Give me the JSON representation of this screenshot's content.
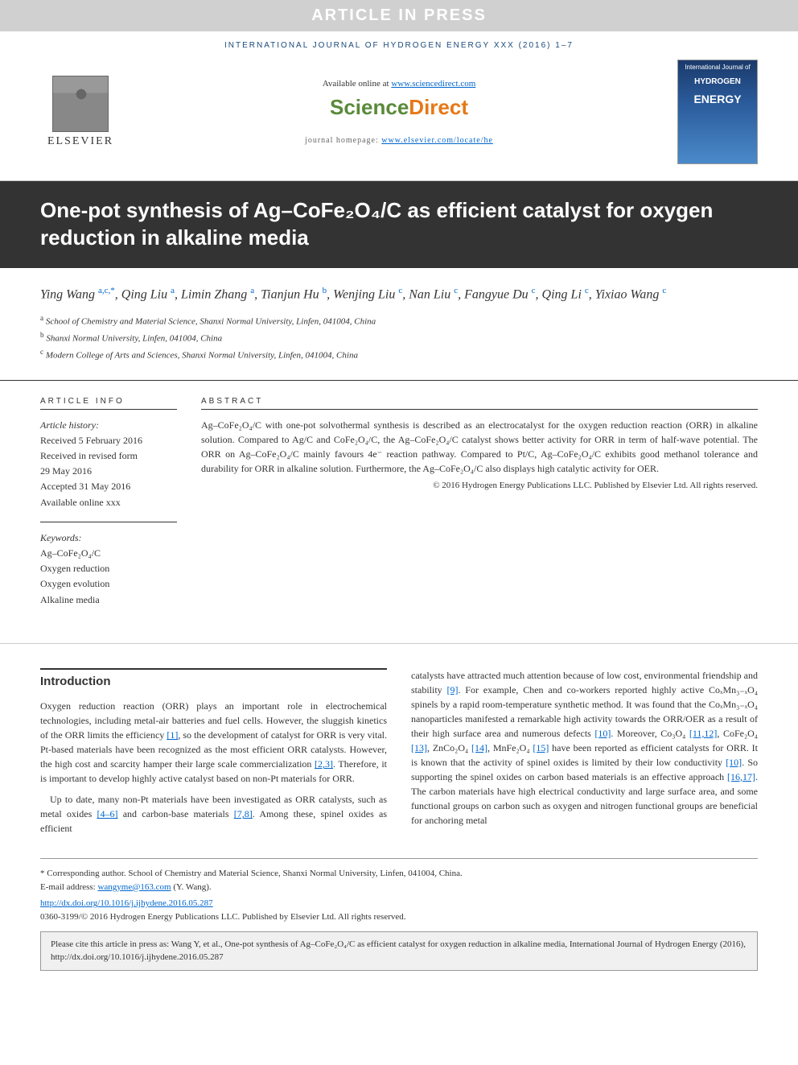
{
  "banner": "ARTICLE IN PRESS",
  "journal_header": "INTERNATIONAL JOURNAL OF HYDROGEN ENERGY XXX (2016) 1–7",
  "elsevier": "ELSEVIER",
  "available_prefix": "Available online at ",
  "available_link": "www.sciencedirect.com",
  "sd_sci": "Science",
  "sd_dir": "Direct",
  "homepage_prefix": "journal homepage: ",
  "homepage_link": "www.elsevier.com/locate/he",
  "cover": {
    "line1": "International Journal of",
    "line2": "HYDROGEN",
    "line3": "ENERGY"
  },
  "title": "One-pot synthesis of Ag–CoFe₂O₄/C as efficient catalyst for oxygen reduction in alkaline media",
  "authors_html": "Ying Wang <sup>a,c,*</sup>, Qing Liu <sup>a</sup>, Limin Zhang <sup>a</sup>, Tianjun Hu <sup>b</sup>, Wenjing Liu <sup>c</sup>, Nan Liu <sup>c</sup>, Fangyue Du <sup>c</sup>, Qing Li <sup>c</sup>, Yixiao Wang <sup>c</sup>",
  "affiliations": [
    {
      "sup": "a",
      "text": "School of Chemistry and Material Science, Shanxi Normal University, Linfen, 041004, China"
    },
    {
      "sup": "b",
      "text": "Shanxi Normal University, Linfen, 041004, China"
    },
    {
      "sup": "c",
      "text": "Modern College of Arts and Sciences, Shanxi Normal University, Linfen, 041004, China"
    }
  ],
  "info_heading": "ARTICLE INFO",
  "history_title": "Article history:",
  "history": [
    "Received 5 February 2016",
    "Received in revised form",
    "29 May 2016",
    "Accepted 31 May 2016",
    "Available online xxx"
  ],
  "keywords_title": "Keywords:",
  "keywords": [
    "Ag–CoFe₂O₄/C",
    "Oxygen reduction",
    "Oxygen evolution",
    "Alkaline media"
  ],
  "abstract_heading": "ABSTRACT",
  "abstract_text": "Ag–CoFe₂O₄/C with one-pot solvothermal synthesis is described as an electrocatalyst for the oxygen reduction reaction (ORR) in alkaline solution. Compared to Ag/C and CoFe₂O₄/C, the Ag–CoFe₂O₄/C catalyst shows better activity for ORR in term of half-wave potential. The ORR on Ag–CoFe₂O₄/C mainly favours 4e⁻ reaction pathway. Compared to Pt/C, Ag–CoFe₂O₄/C exhibits good methanol tolerance and durability for ORR in alkaline solution. Furthermore, the Ag–CoFe₂O₄/C also displays high catalytic activity for OER.",
  "abstract_copyright": "© 2016 Hydrogen Energy Publications LLC. Published by Elsevier Ltd. All rights reserved.",
  "intro_heading": "Introduction",
  "col1_p1": "Oxygen reduction reaction (ORR) plays an important role in electrochemical technologies, including metal-air batteries and fuel cells. However, the sluggish kinetics of the ORR limits the efficiency [1], so the development of catalyst for ORR is very vital. Pt-based materials have been recognized as the most efficient ORR catalysts. However, the high cost and scarcity hamper their large scale commercialization [2,3]. Therefore, it is important to develop highly active catalyst based on non-Pt materials for ORR.",
  "col1_p2": "Up to date, many non-Pt materials have been investigated as ORR catalysts, such as metal oxides [4–6] and carbon-base materials [7,8]. Among these, spinel oxides as efficient",
  "col2_p1": "catalysts have attracted much attention because of low cost, environmental friendship and stability [9]. For example, Chen and co-workers reported highly active CoₓMn₃₋ₓO₄ spinels by a rapid room-temperature synthetic method. It was found that the CoₓMn₃₋ₓO₄ nanoparticles manifested a remarkable high activity towards the ORR/OER as a result of their high surface area and numerous defects [10]. Moreover, Co₃O₄ [11,12], CoFe₂O₄ [13], ZnCo₂O₄ [14], MnFe₂O₄ [15] have been reported as efficient catalysts for ORR. It is known that the activity of spinel oxides is limited by their low conductivity [10]. So supporting the spinel oxides on carbon based materials is an effective approach [16,17]. The carbon materials have high electrical conductivity and large surface area, and some functional groups on carbon such as oxygen and nitrogen functional groups are beneficial for anchoring metal",
  "corresponding": "* Corresponding author. School of Chemistry and Material Science, Shanxi Normal University, Linfen, 041004, China.",
  "email_label": "E-mail address: ",
  "email": "wangyme@163.com",
  "email_suffix": " (Y. Wang).",
  "doi_link": "http://dx.doi.org/10.1016/j.ijhydene.2016.05.287",
  "issn_line": "0360-3199/© 2016 Hydrogen Energy Publications LLC. Published by Elsevier Ltd. All rights reserved.",
  "cite_text": "Please cite this article in press as: Wang Y, et al., One-pot synthesis of Ag–CoFe₂O₄/C as efficient catalyst for oxygen reduction in alkaline media, International Journal of Hydrogen Energy (2016), http://dx.doi.org/10.1016/j.ijhydene.2016.05.287"
}
